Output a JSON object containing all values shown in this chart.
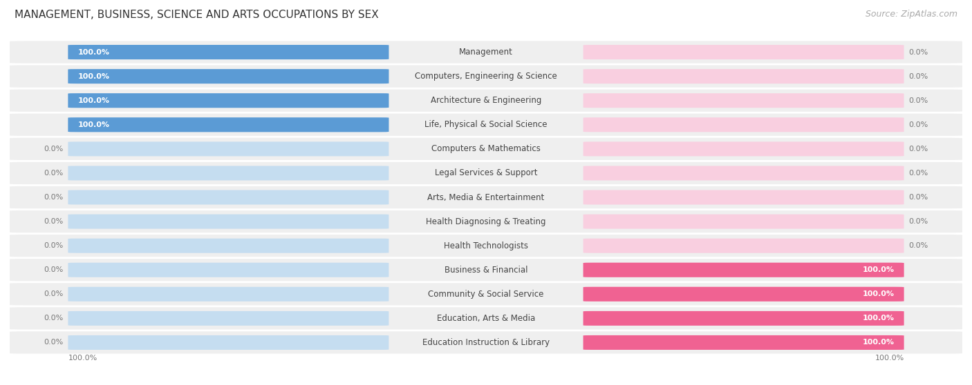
{
  "title": "MANAGEMENT, BUSINESS, SCIENCE AND ARTS OCCUPATIONS BY SEX",
  "source": "Source: ZipAtlas.com",
  "categories": [
    "Management",
    "Computers, Engineering & Science",
    "Architecture & Engineering",
    "Life, Physical & Social Science",
    "Computers & Mathematics",
    "Legal Services & Support",
    "Arts, Media & Entertainment",
    "Health Diagnosing & Treating",
    "Health Technologists",
    "Business & Financial",
    "Community & Social Service",
    "Education, Arts & Media",
    "Education Instruction & Library"
  ],
  "male_values": [
    100.0,
    100.0,
    100.0,
    100.0,
    0.0,
    0.0,
    0.0,
    0.0,
    0.0,
    0.0,
    0.0,
    0.0,
    0.0
  ],
  "female_values": [
    0.0,
    0.0,
    0.0,
    0.0,
    0.0,
    0.0,
    0.0,
    0.0,
    0.0,
    100.0,
    100.0,
    100.0,
    100.0
  ],
  "male_color": "#5b9bd5",
  "female_color": "#f06292",
  "male_light_color": "#c5ddf0",
  "female_light_color": "#f9cfe0",
  "row_bg_color": "#efefef",
  "title_fontsize": 11,
  "source_fontsize": 9,
  "label_fontsize": 8.5,
  "pct_fontsize": 8.0
}
